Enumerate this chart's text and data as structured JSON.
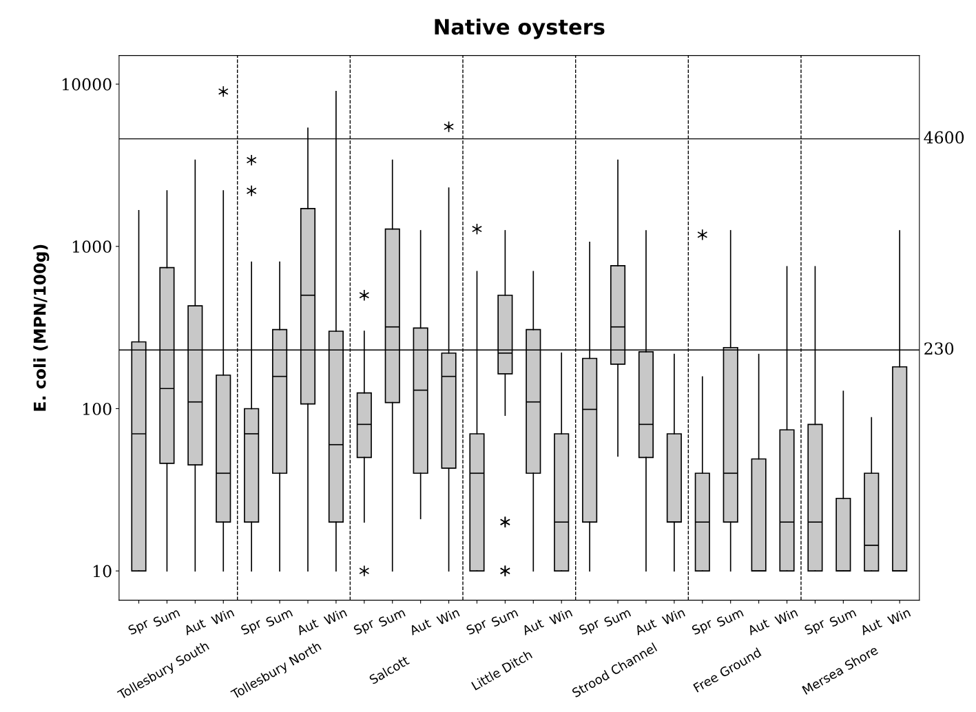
{
  "chart_data": {
    "type": "box",
    "title": "Native oysters",
    "ylabel": "E. coli (MPN/100g)",
    "categories": [
      "Spr",
      "Sum",
      "Aut",
      "Win",
      "Spr",
      "Sum",
      "Aut",
      "Win",
      "Spr",
      "Sum",
      "Aut",
      "Win",
      "Spr",
      "Sum",
      "Aut",
      "Win",
      "Spr",
      "Sum",
      "Aut",
      "Win",
      "Spr",
      "Sum",
      "Aut",
      "Win",
      "Spr",
      "Sum",
      "Aut",
      "Win"
    ],
    "annotations": [
      "Tollesbury South",
      "Tollesbury North",
      "Salcott",
      "Little Ditch",
      "Strood Channel",
      "Free Ground",
      "Mersea Shore"
    ],
    "color": "#c8c8c8",
    "marker": "star",
    "log": "y",
    "ylim": [
      6.6,
      15000
    ],
    "yticks": [
      10,
      100,
      1000,
      10000
    ],
    "grid": false,
    "boxes": [
      {
        "low": 10,
        "q1": 10,
        "median": 70,
        "q3": 258,
        "high": 1660
      },
      {
        "low": 10,
        "q1": 46,
        "median": 133,
        "q3": 740,
        "high": 2200
      },
      {
        "low": 10,
        "q1": 45,
        "median": 110,
        "q3": 430,
        "high": 3400
      },
      {
        "low": 10,
        "q1": 20,
        "median": 40,
        "q3": 161,
        "high": 2200,
        "outliers": [
          9000
        ]
      },
      {
        "low": 10,
        "q1": 20,
        "median": 70,
        "q3": 100,
        "high": 800,
        "outliers": [
          3400,
          2200
        ]
      },
      {
        "low": 10,
        "q1": 40,
        "median": 158,
        "q3": 307,
        "high": 800
      },
      {
        "low": 10,
        "q1": 107,
        "median": 500,
        "q3": 1710,
        "high": 5350
      },
      {
        "low": 10,
        "q1": 20,
        "median": 60,
        "q3": 300,
        "high": 9000
      },
      {
        "low": 20,
        "q1": 50,
        "median": 80,
        "q3": 125,
        "high": 300,
        "outliers": [
          500,
          10
        ]
      },
      {
        "low": 10,
        "q1": 109,
        "median": 319,
        "q3": 1280,
        "high": 3400
      },
      {
        "low": 21,
        "q1": 40,
        "median": 130,
        "q3": 314,
        "high": 1250
      },
      {
        "low": 10,
        "q1": 43,
        "median": 158,
        "q3": 220,
        "high": 2290,
        "outliers": [
          5460
        ]
      },
      {
        "low": 10,
        "q1": 10,
        "median": 40,
        "q3": 70,
        "high": 700,
        "outliers": [
          1280
        ]
      },
      {
        "low": 91,
        "q1": 164,
        "median": 220,
        "q3": 500,
        "high": 1250,
        "outliers": [
          20,
          20,
          10,
          10
        ]
      },
      {
        "low": 10,
        "q1": 40,
        "median": 110,
        "q3": 307,
        "high": 700
      },
      {
        "low": 10,
        "q1": 10,
        "median": 20,
        "q3": 70,
        "high": 220
      },
      {
        "low": 10,
        "q1": 20,
        "median": 99,
        "q3": 204,
        "high": 1060
      },
      {
        "low": 51,
        "q1": 188,
        "median": 319,
        "q3": 760,
        "high": 3400
      },
      {
        "low": 10,
        "q1": 50,
        "median": 80,
        "q3": 224,
        "high": 1250
      },
      {
        "low": 10,
        "q1": 20,
        "median": 20,
        "q3": 70,
        "high": 216
      },
      {
        "low": 10,
        "q1": 10,
        "median": 20,
        "q3": 40,
        "high": 157,
        "outliers": [
          1180
        ]
      },
      {
        "low": 10,
        "q1": 20,
        "median": 40,
        "q3": 238,
        "high": 1250
      },
      {
        "low": 10,
        "q1": 10,
        "median": 10,
        "q3": 49,
        "high": 216
      },
      {
        "low": 10,
        "q1": 10,
        "median": 20,
        "q3": 74,
        "high": 750
      },
      {
        "low": 10,
        "q1": 10,
        "median": 20,
        "q3": 80,
        "high": 750
      },
      {
        "low": 10,
        "q1": 10,
        "median": 10,
        "q3": 28,
        "high": 128
      },
      {
        "low": 10,
        "q1": 10,
        "median": 14.4,
        "q3": 40,
        "high": 88
      },
      {
        "low": 10,
        "q1": 10,
        "median": 10,
        "q3": 181,
        "high": 1250
      }
    ],
    "ref_lines": [
      {
        "axis": "y",
        "value": 4600,
        "label": "4600",
        "color": "#000000",
        "line_style": "solid"
      },
      {
        "axis": "y",
        "value": 230,
        "label": "230",
        "color": "#000000",
        "line_style": "solid"
      }
    ]
  }
}
